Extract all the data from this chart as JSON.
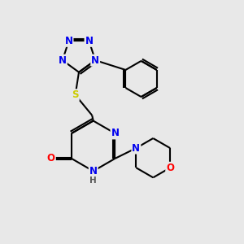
{
  "bg_color": "#e8e8e8",
  "bond_color": "#000000",
  "bond_width": 1.5,
  "atom_colors": {
    "N": "#0000ee",
    "O": "#ff0000",
    "S": "#cccc00",
    "C": "#000000",
    "H": "#555555"
  },
  "font_size": 8.5,
  "title": ""
}
